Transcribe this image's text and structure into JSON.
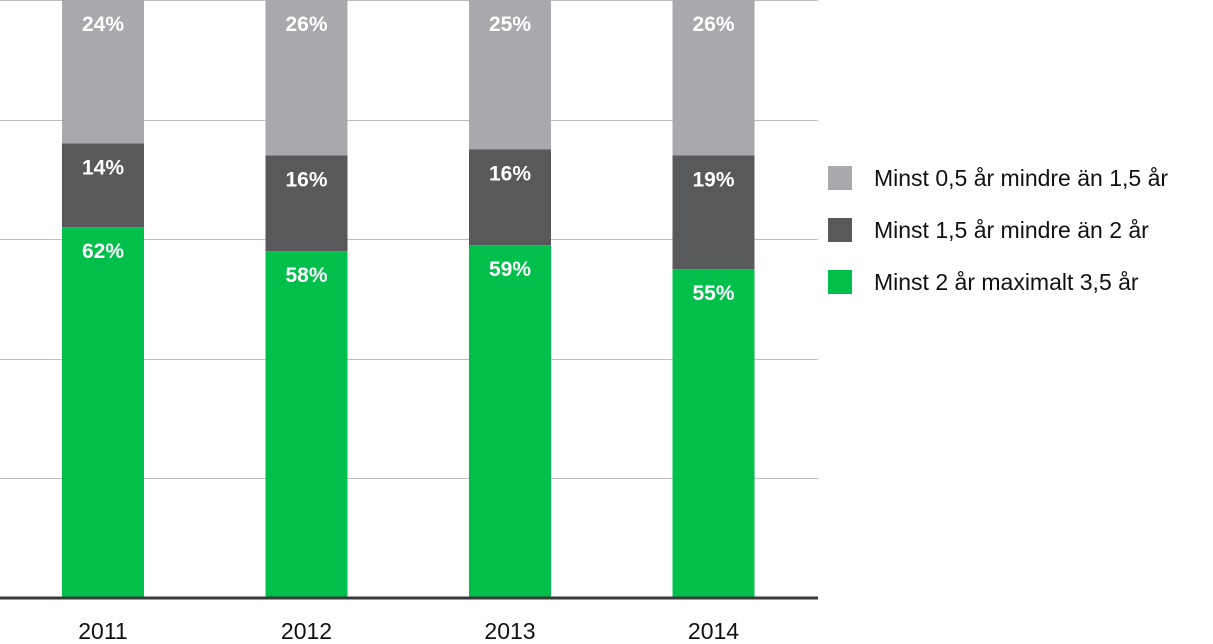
{
  "chart_data": {
    "type": "bar",
    "stacked": true,
    "categories": [
      "2011",
      "2012",
      "2013",
      "2014"
    ],
    "ylim": [
      0,
      100
    ],
    "grid": true,
    "legend_position": "right",
    "series": [
      {
        "name": "Minst 2 år maximalt 3,5 år",
        "color": "#00c04b",
        "values": [
          62,
          58,
          59,
          55
        ],
        "labels": [
          "62%",
          "58%",
          "59%",
          "55%"
        ]
      },
      {
        "name": "Minst 1,5 år mindre än 2 år",
        "color": "#58595b",
        "values": [
          14,
          16,
          16,
          19
        ],
        "labels": [
          "14%",
          "16%",
          "16%",
          "19%"
        ]
      },
      {
        "name": "Minst 0,5 år mindre än 1,5 år",
        "color": "#a7a9ac",
        "values": [
          24,
          26,
          25,
          26
        ],
        "labels": [
          "24%",
          "26%",
          "25%",
          "26%"
        ]
      }
    ],
    "legend_order": [
      2,
      1,
      0
    ]
  }
}
